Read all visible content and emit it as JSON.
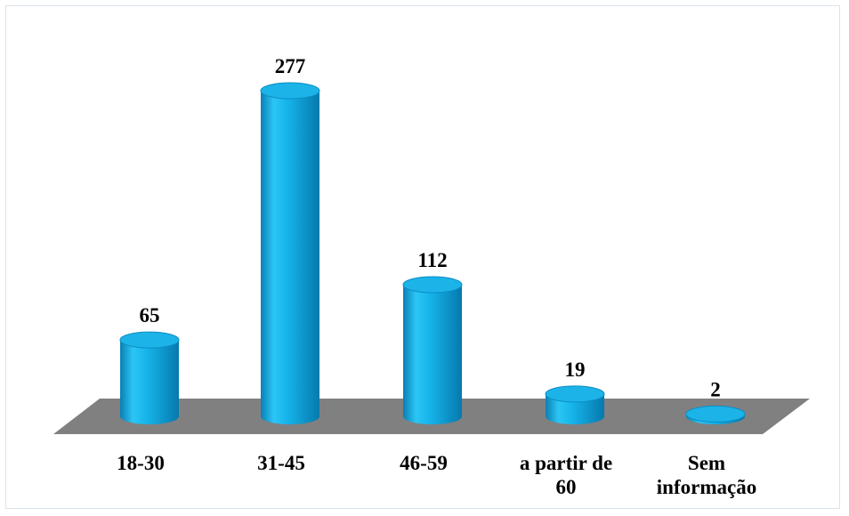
{
  "chart_data": {
    "type": "bar",
    "title": "",
    "xlabel": "",
    "ylabel": "",
    "categories": [
      [
        "18-30"
      ],
      [
        "31-45"
      ],
      [
        "46-59"
      ],
      [
        "a partir de",
        "60"
      ],
      [
        "Sem",
        "informação"
      ]
    ],
    "values": [
      65,
      277,
      112,
      19,
      2
    ],
    "value_labels": [
      "65",
      "277",
      "112",
      "19",
      "2"
    ],
    "ylim": [
      0,
      277
    ],
    "grid": false,
    "legend": "none",
    "style": "3d-cylinder",
    "bar_color": "#00a6e3",
    "floor_color": "#808080"
  }
}
